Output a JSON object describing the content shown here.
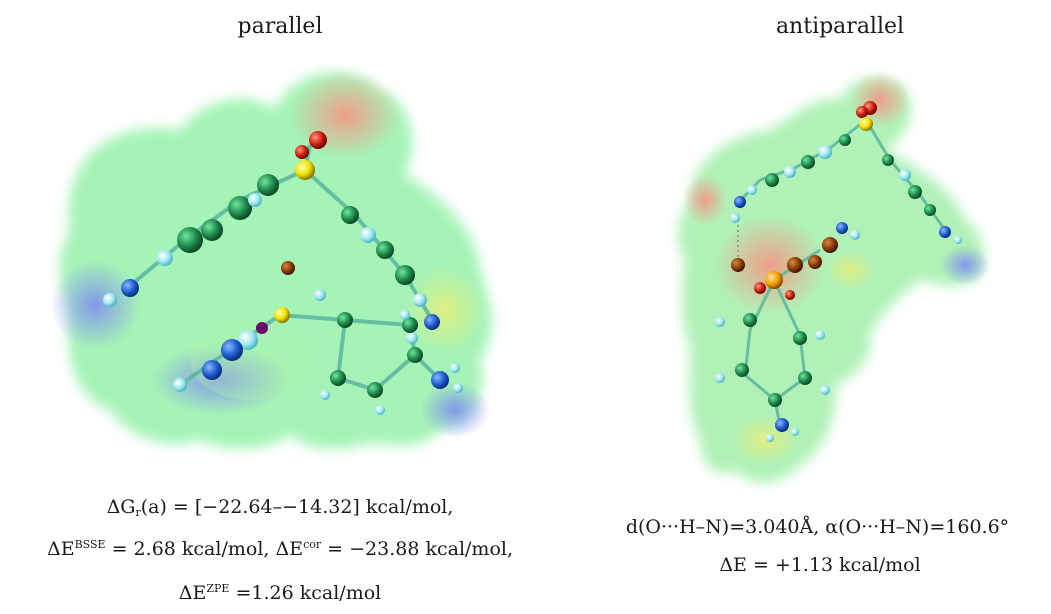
{
  "panels": {
    "left": {
      "title": "parallel",
      "caption": {
        "line1": {
          "a": "ΔG",
          "b": "r",
          "c": "(a) = [−22.64–−14.32] kcal/mol,"
        },
        "line2": {
          "a": "ΔE",
          "b": "BSSE",
          "c": " = 2.68 kcal/mol, ΔE",
          "d": "cor",
          "e": " = −23.88 kcal/mol,"
        },
        "line3": {
          "a": "ΔE",
          "b": "ZPE",
          "c": " =1.26 kcal/mol"
        }
      }
    },
    "right": {
      "title": "antiparallel",
      "caption": {
        "line1": "d(O···H–N)=3.040Å,  α(O···H–N)=160.6°",
        "line2": "ΔE = +1.13 kcal/mol"
      }
    }
  },
  "colors": {
    "surface_green": "#86f0a0",
    "surface_red": "#f3a48f",
    "surface_blue": "#8aa7f0",
    "carbon": "#1f8a4c",
    "hydrogen": "#9ee8f0",
    "nitrogen": "#1e5fd0",
    "oxygen": "#d02010",
    "sulfur": "#f0e000"
  },
  "molecules": [
    "parallel-dimer-image",
    "antiparallel-dimer-image"
  ]
}
